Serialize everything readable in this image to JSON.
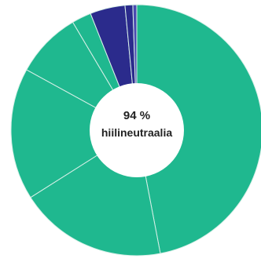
{
  "chart_data": {
    "type": "pie",
    "donut": true,
    "center_label": {
      "value": "94 %",
      "text": "hiilineutraalia"
    },
    "slices": [
      {
        "value": 47.0,
        "color": "#1fb88f"
      },
      {
        "value": 19.0,
        "color": "#1fb88f"
      },
      {
        "value": 17.0,
        "color": "#1fb88f"
      },
      {
        "value": 8.5,
        "color": "#1fb88f"
      },
      {
        "value": 2.5,
        "color": "#1fb88f"
      },
      {
        "value": 4.5,
        "color": "#2b2b8c"
      },
      {
        "value": 1.0,
        "color": "#2b2b8c"
      },
      {
        "value": 0.5,
        "color": "#4a4ab0"
      }
    ],
    "start_angle_deg": 0,
    "direction": "clockwise",
    "separator_color": "#d8f0e8"
  }
}
